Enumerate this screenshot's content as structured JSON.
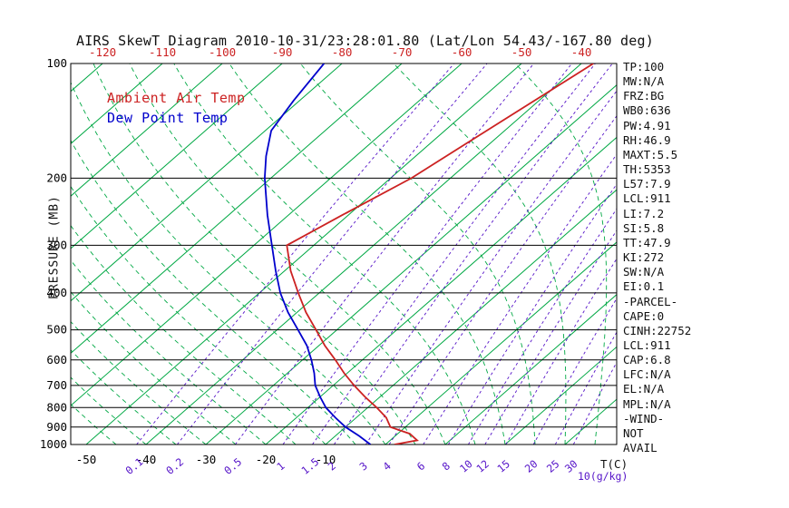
{
  "title": "AIRS SkewT Diagram 2010-10-31/23:28:01.80 (Lat/Lon 54.43/-167.80 deg)",
  "legend": {
    "temp": {
      "label": "Ambient Air Temp",
      "color": "#cc2222"
    },
    "dew": {
      "label": "Dew Point Temp",
      "color": "#0000cc"
    }
  },
  "colors": {
    "temp_line": "#cc2222",
    "dew_line": "#0000cc",
    "isotherm": "#00a844",
    "moist_adiabat": "#00a844",
    "mixing_ratio": "#5513c8",
    "axis": "#000000"
  },
  "axes": {
    "pressure_label": "PRESSURE (MB)",
    "pressure_ticks": [
      100,
      200,
      300,
      400,
      500,
      600,
      700,
      800,
      900,
      1000
    ],
    "top_temp_ticks": [
      -120,
      -110,
      -100,
      -90,
      -80,
      -70,
      -60,
      -50,
      -40
    ],
    "bottom_temp_ticks": [
      -50,
      -40,
      -30,
      -20,
      -10
    ],
    "mixing_ratio_ticks": [
      0.1,
      0.2,
      0.5,
      1,
      1.5,
      2,
      3,
      4,
      6,
      8,
      10,
      12,
      15,
      20,
      25,
      30
    ],
    "temp_unit_label": "T(C)",
    "mixing_unit_label": "10(g/kg)"
  },
  "stats": [
    "TP:100",
    "MW:N/A",
    "FRZ:BG",
    "WB0:636",
    "PW:4.91",
    "RH:46.9",
    "MAXT:5.5",
    "TH:5353",
    "L57:7.9",
    "LCL:911",
    "LI:7.2",
    "SI:5.8",
    "TT:47.9",
    "KI:272",
    "SW:N/A",
    "EI:0.1",
    "-PARCEL-",
    "CAPE:0",
    "CINH:22752",
    "LCL:911",
    "CAP:6.8",
    "LFC:N/A",
    "EL:N/A",
    "MPL:N/A",
    "-WIND-",
    "NOT",
    "AVAIL"
  ],
  "chart_data": {
    "type": "line",
    "subtype": "skew-t-log-p",
    "title": "AIRS SkewT Diagram 2010-10-31/23:28:01.80 (Lat/Lon 54.43/-167.80 deg)",
    "xlabel": "T(C)",
    "ylabel": "PRESSURE (MB)",
    "pressure_range": [
      100,
      1000
    ],
    "pressure_scale": "log",
    "pressure_ticks": [
      100,
      200,
      300,
      400,
      500,
      600,
      700,
      800,
      900,
      1000
    ],
    "series": [
      {
        "name": "Ambient Air Temp",
        "color": "#cc2222",
        "units": {
          "x": "degC",
          "y": "hPa"
        },
        "points": [
          [
            100,
            -38
          ],
          [
            150,
            -43
          ],
          [
            200,
            -46.5
          ],
          [
            250,
            -51
          ],
          [
            300,
            -54.5
          ],
          [
            350,
            -49
          ],
          [
            400,
            -43.5
          ],
          [
            450,
            -38.5
          ],
          [
            500,
            -33.5
          ],
          [
            550,
            -29
          ],
          [
            600,
            -24.5
          ],
          [
            650,
            -20.5
          ],
          [
            700,
            -16.5
          ],
          [
            750,
            -12.5
          ],
          [
            800,
            -8.5
          ],
          [
            850,
            -5
          ],
          [
            900,
            -2.5
          ],
          [
            937,
            2
          ],
          [
            975,
            4.5
          ],
          [
            1000,
            1.5
          ]
        ]
      },
      {
        "name": "Dew Point Temp",
        "color": "#0000cc",
        "units": {
          "x": "degC",
          "y": "hPa"
        },
        "points": [
          [
            100,
            -83
          ],
          [
            125,
            -81
          ],
          [
            150,
            -79
          ],
          [
            175,
            -75
          ],
          [
            200,
            -71
          ],
          [
            250,
            -63.5
          ],
          [
            300,
            -57
          ],
          [
            350,
            -51.5
          ],
          [
            400,
            -46.5
          ],
          [
            450,
            -41.5
          ],
          [
            500,
            -36.5
          ],
          [
            550,
            -32
          ],
          [
            600,
            -28.5
          ],
          [
            650,
            -25.5
          ],
          [
            700,
            -23
          ],
          [
            750,
            -20
          ],
          [
            800,
            -17
          ],
          [
            850,
            -13.5
          ],
          [
            900,
            -10
          ],
          [
            950,
            -6
          ],
          [
            1000,
            -2.5
          ]
        ]
      }
    ],
    "background_lines": {
      "isotherms_c": {
        "min": -160,
        "max": 40,
        "step": 10
      },
      "mixing_ratio_g_per_kg": [
        0.1,
        0.2,
        0.5,
        1,
        1.5,
        2,
        3,
        4,
        6,
        8,
        10,
        12,
        15,
        20,
        25,
        30
      ],
      "moist_adiabats_surface_temp_c": {
        "min": -45,
        "max": 55,
        "step": 5
      }
    },
    "legend_position": "top-left-inside"
  }
}
